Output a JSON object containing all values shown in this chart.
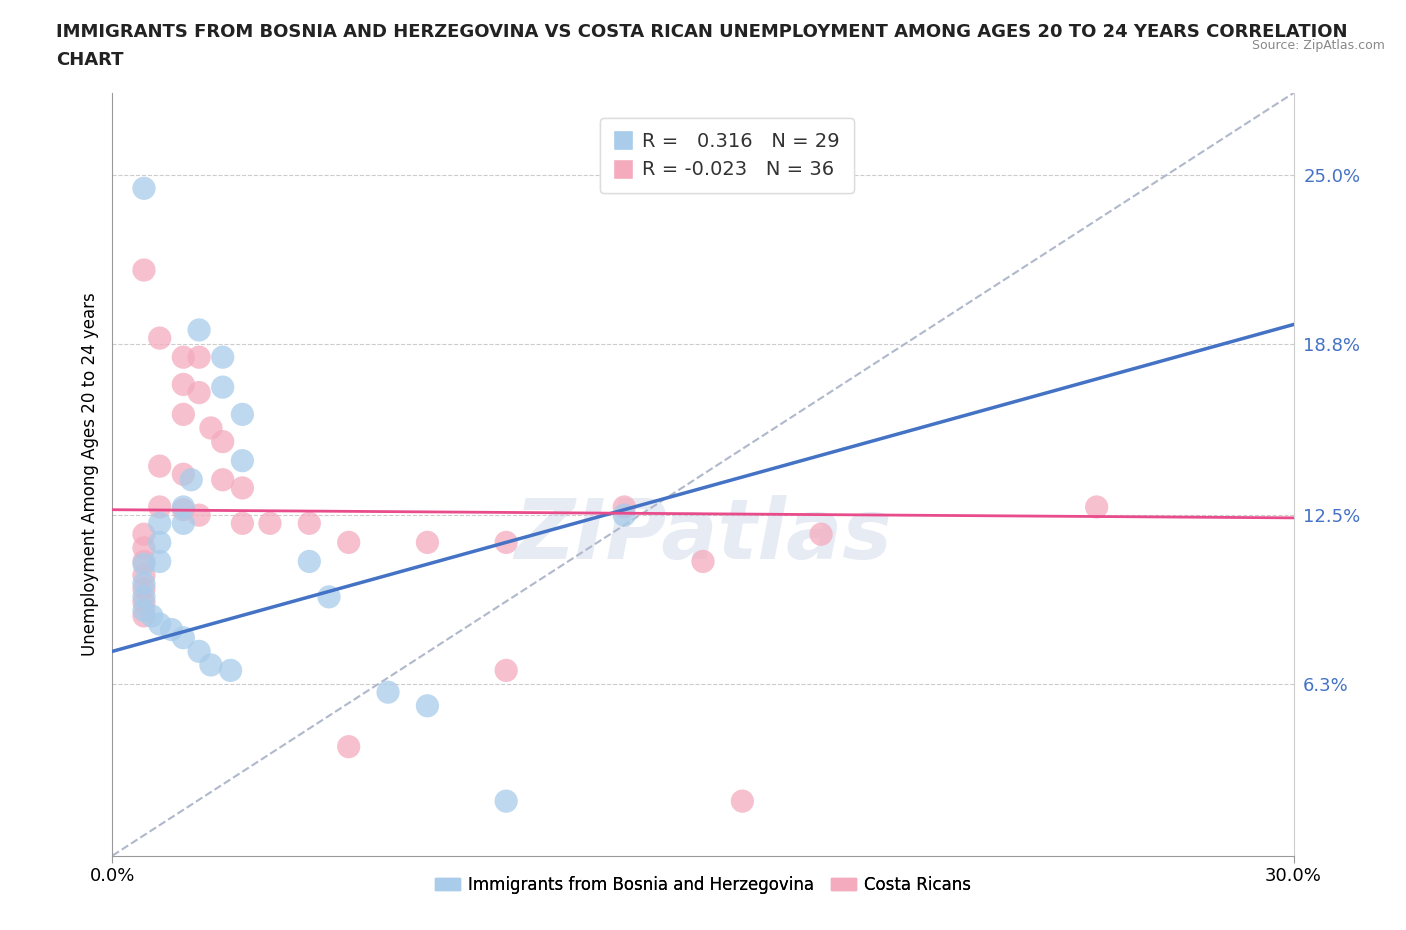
{
  "title_line1": "IMMIGRANTS FROM BOSNIA AND HERZEGOVINA VS COSTA RICAN UNEMPLOYMENT AMONG AGES 20 TO 24 YEARS CORRELATION",
  "title_line2": "CHART",
  "source": "Source: ZipAtlas.com",
  "ylabel": "Unemployment Among Ages 20 to 24 years",
  "x_min": 0.0,
  "x_max": 0.3,
  "y_min": 0.0,
  "y_max": 0.28,
  "y_ticks": [
    0.063,
    0.125,
    0.188,
    0.25
  ],
  "y_tick_labels": [
    "6.3%",
    "12.5%",
    "18.8%",
    "25.0%"
  ],
  "x_ticks": [
    0.0,
    0.3
  ],
  "x_tick_labels": [
    "0.0%",
    "30.0%"
  ],
  "legend_label1": "Immigrants from Bosnia and Herzegovina",
  "legend_label2": "Costa Ricans",
  "blue_color": "#A8CCEA",
  "pink_color": "#F4ABBE",
  "blue_line_color": "#4472C4",
  "pink_line_color": "#E84C8B",
  "dashed_line_color": "#B0B8CC",
  "background_color": "#FFFFFF",
  "watermark": "ZIPatlas",
  "blue_points": [
    [
      0.008,
      0.245
    ],
    [
      0.022,
      0.193
    ],
    [
      0.028,
      0.183
    ],
    [
      0.028,
      0.172
    ],
    [
      0.033,
      0.162
    ],
    [
      0.033,
      0.145
    ],
    [
      0.02,
      0.138
    ],
    [
      0.018,
      0.128
    ],
    [
      0.018,
      0.122
    ],
    [
      0.012,
      0.122
    ],
    [
      0.012,
      0.115
    ],
    [
      0.012,
      0.108
    ],
    [
      0.008,
      0.107
    ],
    [
      0.008,
      0.1
    ],
    [
      0.008,
      0.095
    ],
    [
      0.008,
      0.09
    ],
    [
      0.01,
      0.088
    ],
    [
      0.012,
      0.085
    ],
    [
      0.015,
      0.083
    ],
    [
      0.018,
      0.08
    ],
    [
      0.022,
      0.075
    ],
    [
      0.025,
      0.07
    ],
    [
      0.03,
      0.068
    ],
    [
      0.05,
      0.108
    ],
    [
      0.055,
      0.095
    ],
    [
      0.07,
      0.06
    ],
    [
      0.08,
      0.055
    ],
    [
      0.13,
      0.125
    ],
    [
      0.1,
      0.02
    ]
  ],
  "pink_points": [
    [
      0.008,
      0.215
    ],
    [
      0.012,
      0.19
    ],
    [
      0.018,
      0.183
    ],
    [
      0.022,
      0.183
    ],
    [
      0.018,
      0.173
    ],
    [
      0.022,
      0.17
    ],
    [
      0.018,
      0.162
    ],
    [
      0.025,
      0.157
    ],
    [
      0.028,
      0.152
    ],
    [
      0.012,
      0.143
    ],
    [
      0.018,
      0.14
    ],
    [
      0.028,
      0.138
    ],
    [
      0.033,
      0.135
    ],
    [
      0.012,
      0.128
    ],
    [
      0.018,
      0.127
    ],
    [
      0.022,
      0.125
    ],
    [
      0.033,
      0.122
    ],
    [
      0.04,
      0.122
    ],
    [
      0.008,
      0.118
    ],
    [
      0.008,
      0.113
    ],
    [
      0.008,
      0.108
    ],
    [
      0.008,
      0.103
    ],
    [
      0.008,
      0.098
    ],
    [
      0.008,
      0.093
    ],
    [
      0.008,
      0.088
    ],
    [
      0.05,
      0.122
    ],
    [
      0.06,
      0.115
    ],
    [
      0.08,
      0.115
    ],
    [
      0.1,
      0.115
    ],
    [
      0.13,
      0.128
    ],
    [
      0.15,
      0.108
    ],
    [
      0.18,
      0.118
    ],
    [
      0.25,
      0.128
    ],
    [
      0.1,
      0.068
    ],
    [
      0.06,
      0.04
    ],
    [
      0.16,
      0.02
    ]
  ],
  "blue_trend": [
    0.0,
    0.3,
    0.075,
    0.195
  ],
  "pink_trend": [
    0.0,
    0.3,
    0.127,
    0.124
  ],
  "diag_line": [
    0.0,
    0.3,
    0.0,
    0.28
  ]
}
